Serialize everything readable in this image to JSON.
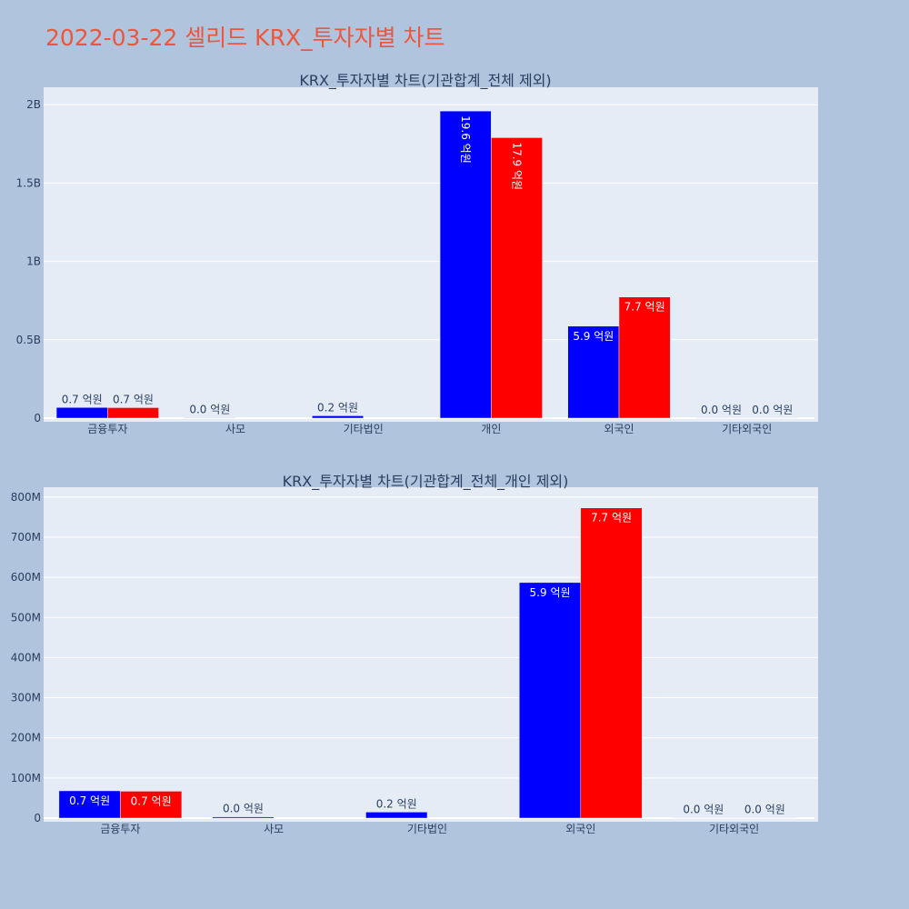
{
  "title": "2022-03-22 셀리드 KRX_투자자별 차트",
  "colors": {
    "series_a": "#0000ff",
    "series_b": "#ff0000",
    "plot_bg": "#e5ecf6",
    "paper_bg": "#b0c4de",
    "title": "#ef553b"
  },
  "chart_data": [
    {
      "type": "bar",
      "title": "KRX_투자자별 차트(기관합계_전체 제외)",
      "categories": [
        "금융투자",
        "사모",
        "기타법인",
        "개인",
        "외국인",
        "기타외국인"
      ],
      "series": [
        {
          "values": [
            68000000,
            3000000,
            15000000,
            1960000000,
            587000000,
            1000000
          ],
          "labels": [
            "0.7 억원",
            "0.0 억원",
            "0.2 억원",
            "19.6 억원",
            "5.9 억원",
            "0.0 억원"
          ]
        },
        {
          "values": [
            67000000,
            0,
            0,
            1790000000,
            773000000,
            1000000
          ],
          "labels": [
            "0.7 억원",
            "",
            "",
            "17.9 억원",
            "7.7 억원",
            "0.0 억원"
          ]
        }
      ],
      "ylim": [
        0,
        2100000000
      ],
      "yticks": [
        0,
        500000000,
        1000000000,
        1500000000,
        2000000000
      ],
      "ytick_labels": [
        "0",
        "0.5B",
        "1B",
        "1.5B",
        "2B"
      ],
      "barmode": "group",
      "grid": true
    },
    {
      "type": "bar",
      "title": "KRX_투자자별 차트(기관합계_전체_개인 제외)",
      "categories": [
        "금융투자",
        "사모",
        "기타법인",
        "외국인",
        "기타외국인"
      ],
      "series": [
        {
          "values": [
            68000000,
            3000000,
            15000000,
            587000000,
            1000000
          ],
          "labels": [
            "0.7 억원",
            "0.0 억원",
            "0.2 억원",
            "5.9 억원",
            "0.0 억원"
          ]
        },
        {
          "values": [
            67000000,
            0,
            0,
            773000000,
            1000000
          ],
          "labels": [
            "0.7 억원",
            "",
            "",
            "7.7 억원",
            "0.0 억원"
          ]
        }
      ],
      "ylim": [
        0,
        820000000
      ],
      "yticks": [
        0,
        100000000,
        200000000,
        300000000,
        400000000,
        500000000,
        600000000,
        700000000,
        800000000
      ],
      "ytick_labels": [
        "0",
        "100M",
        "200M",
        "300M",
        "400M",
        "500M",
        "600M",
        "700M",
        "800M"
      ],
      "barmode": "group",
      "grid": true
    }
  ]
}
